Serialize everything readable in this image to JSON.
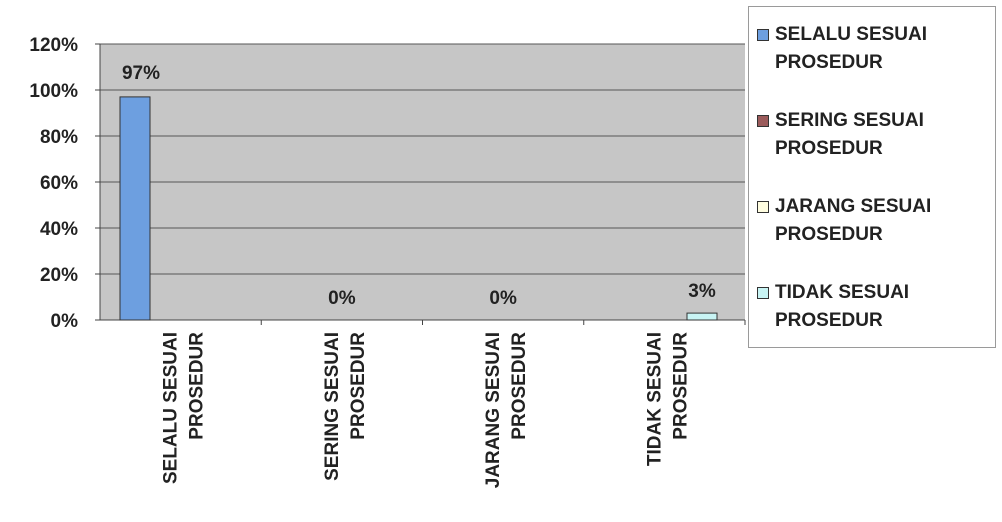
{
  "chart_data": {
    "type": "bar",
    "categories": [
      [
        "SELALU SESUAI",
        "PROSEDUR"
      ],
      [
        "SERING SESUAI",
        "PROSEDUR"
      ],
      [
        "JARANG SESUAI",
        "PROSEDUR"
      ],
      [
        "TIDAK SESUAI",
        "PROSEDUR"
      ]
    ],
    "values": [
      97,
      0,
      0,
      3
    ],
    "data_labels": [
      "97%",
      "0%",
      "0%",
      "3%"
    ],
    "bar_colors": [
      "#6d9fe0",
      "#9b5b5b",
      "#fffde0",
      "#c8f4f4"
    ],
    "y_ticks": [
      "120%",
      "100%",
      "80%",
      "60%",
      "40%",
      "20%",
      "0%"
    ],
    "ylim": [
      0,
      120
    ],
    "grid": true,
    "plot_background": "#c6c6c6",
    "legend_position": "right",
    "legend": [
      {
        "lines": [
          "SELALU SESUAI",
          "PROSEDUR"
        ],
        "color": "#6d9fe0"
      },
      {
        "lines": [
          "SERING SESUAI",
          "PROSEDUR"
        ],
        "color": "#9b5b5b"
      },
      {
        "lines": [
          "JARANG SESUAI",
          "PROSEDUR"
        ],
        "color": "#fffde0"
      },
      {
        "lines": [
          "TIDAK SESUAI",
          "PROSEDUR"
        ],
        "color": "#c8f4f4"
      }
    ]
  }
}
